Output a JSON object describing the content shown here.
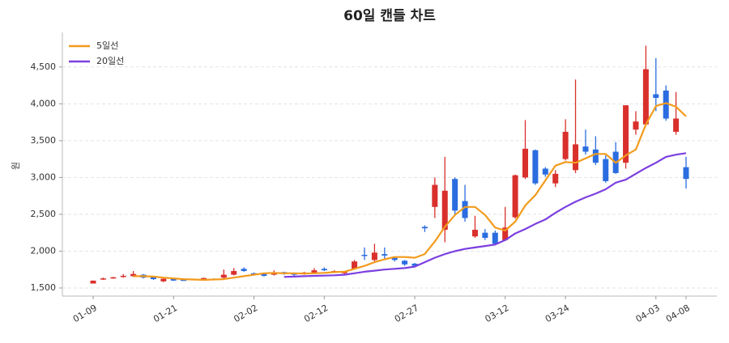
{
  "chart_data": {
    "type": "candlestick",
    "title": "60일 캔들 차트",
    "y_label": "원",
    "categories": [
      "01-09",
      null,
      null,
      null,
      null,
      null,
      null,
      null,
      "01-21",
      null,
      null,
      null,
      null,
      null,
      null,
      null,
      "02-02",
      null,
      null,
      null,
      null,
      null,
      null,
      "02-12",
      null,
      null,
      null,
      null,
      null,
      null,
      null,
      null,
      "02-27",
      null,
      null,
      null,
      null,
      null,
      null,
      null,
      null,
      "03-12",
      null,
      null,
      null,
      null,
      null,
      "03-24",
      null,
      null,
      null,
      null,
      null,
      null,
      null,
      null,
      "04-03",
      null,
      null,
      "04-08"
    ],
    "open": [
      1560,
      1620,
      1630,
      1650,
      1660,
      1680,
      1650,
      1590,
      1625,
      1612,
      1610,
      1620,
      1625,
      1640,
      1680,
      1760,
      1700,
      1690,
      1680,
      1715,
      1700,
      1690,
      1700,
      1760,
      1720,
      1700,
      1760,
      1950,
      1880,
      1960,
      1910,
      1870,
      1830,
      2330,
      2600,
      2290,
      2980,
      2680,
      2200,
      2250,
      2250,
      2150,
      2460,
      3000,
      3370,
      3120,
      2920,
      3250,
      3100,
      3420,
      3380,
      3250,
      3350,
      3200,
      3650,
      3720,
      4130,
      4180,
      3620,
      3140
    ],
    "high": [
      1600,
      1640,
      1650,
      1690,
      1730,
      1690,
      1660,
      1640,
      1630,
      1620,
      1625,
      1640,
      1630,
      1750,
      1770,
      1780,
      1710,
      1700,
      1740,
      1720,
      1710,
      1720,
      1770,
      1780,
      1740,
      1730,
      1880,
      2050,
      2100,
      2050,
      1920,
      1880,
      1840,
      2350,
      3000,
      3280,
      3000,
      2900,
      2480,
      2300,
      2280,
      2600,
      3040,
      3780,
      3380,
      3140,
      3100,
      3790,
      4330,
      3650,
      3560,
      3300,
      3480,
      3980,
      3900,
      4790,
      4620,
      4250,
      4160,
      3280
    ],
    "low": [
      1560,
      1610,
      1625,
      1640,
      1650,
      1630,
      1610,
      1580,
      1595,
      1600,
      1605,
      1615,
      1610,
      1630,
      1670,
      1720,
      1680,
      1655,
      1670,
      1680,
      1650,
      1680,
      1690,
      1730,
      1710,
      1690,
      1750,
      1880,
      1860,
      1900,
      1860,
      1800,
      1790,
      2260,
      2450,
      2120,
      2500,
      2400,
      2180,
      2150,
      2080,
      2140,
      2440,
      2980,
      2900,
      3010,
      2870,
      3230,
      3060,
      3310,
      3170,
      2930,
      3050,
      3120,
      3580,
      3700,
      3900,
      3770,
      3580,
      2850
    ],
    "close": [
      1600,
      1630,
      1645,
      1665,
      1690,
      1640,
      1620,
      1625,
      1600,
      1605,
      1620,
      1635,
      1615,
      1680,
      1730,
      1730,
      1690,
      1665,
      1710,
      1690,
      1680,
      1710,
      1740,
      1740,
      1730,
      1720,
      1860,
      1940,
      1980,
      1940,
      1880,
      1820,
      1800,
      2310,
      2900,
      2820,
      2550,
      2450,
      2290,
      2180,
      2100,
      2320,
      3030,
      3390,
      2920,
      3040,
      3050,
      3620,
      3450,
      3350,
      3200,
      2950,
      3060,
      3980,
      3760,
      4470,
      4080,
      3800,
      3800,
      2980
    ],
    "up_color": "#d9302c",
    "down_color": "#2b6de0",
    "series": [
      {
        "name": "5일선",
        "color": "#f29b1d",
        "values": [
          null,
          null,
          null,
          null,
          1660,
          1660,
          1655,
          1640,
          1630,
          1620,
          1615,
          1610,
          1615,
          1620,
          1640,
          1660,
          1680,
          1700,
          1705,
          1700,
          1700,
          1695,
          1700,
          1705,
          1715,
          1720,
          1760,
          1800,
          1850,
          1890,
          1920,
          1920,
          1910,
          1960,
          2130,
          2330,
          2490,
          2600,
          2600,
          2490,
          2320,
          2280,
          2400,
          2620,
          2760,
          2960,
          3160,
          3210,
          3200,
          3260,
          3320,
          3320,
          3200,
          3300,
          3380,
          3720,
          3970,
          4010,
          3960,
          3830
        ]
      },
      {
        "name": "20일선",
        "color": "#7b3fe0",
        "values": [
          null,
          null,
          null,
          null,
          null,
          null,
          null,
          null,
          null,
          null,
          null,
          null,
          null,
          null,
          null,
          null,
          null,
          null,
          null,
          1650,
          1655,
          1660,
          1665,
          1668,
          1672,
          1680,
          1700,
          1720,
          1735,
          1750,
          1760,
          1770,
          1790,
          1850,
          1910,
          1960,
          2000,
          2030,
          2050,
          2070,
          2090,
          2150,
          2240,
          2300,
          2370,
          2430,
          2520,
          2600,
          2670,
          2730,
          2780,
          2840,
          2930,
          2970,
          3050,
          3130,
          3200,
          3280,
          3310,
          3330
        ]
      }
    ],
    "ylim": [
      1390,
      4970
    ],
    "yticks": [
      {
        "value": 1500,
        "label": "1,500"
      },
      {
        "value": 2000,
        "label": "2,000"
      },
      {
        "value": 2500,
        "label": "2,500"
      },
      {
        "value": 3000,
        "label": "3,000"
      },
      {
        "value": 3500,
        "label": "3,500"
      },
      {
        "value": 4000,
        "label": "4,000"
      },
      {
        "value": 4500,
        "label": "4,500"
      }
    ],
    "grid": true,
    "legend": "upper-left"
  }
}
